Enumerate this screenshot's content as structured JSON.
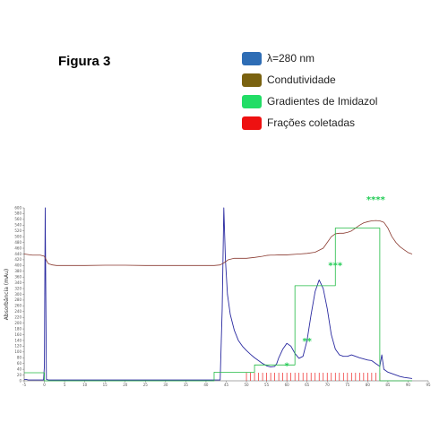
{
  "figure": {
    "title": "Figura 3"
  },
  "legend": [
    {
      "label": "λ=280 nm",
      "color": "#2e6db5"
    },
    {
      "label": "Condutividade",
      "color": "#7a6210"
    },
    {
      "label": "Gradientes de Imidazol",
      "color": "#22dd66"
    },
    {
      "label": "Frações coletadas",
      "color": "#ee1111"
    }
  ],
  "chart_data": {
    "type": "line",
    "title": "",
    "xlabel": "",
    "ylabel": "Absorbância (mAu)",
    "xlim": [
      -5,
      95
    ],
    "ylim": [
      0,
      600
    ],
    "xticks": [
      -5,
      0,
      5,
      10,
      15,
      20,
      25,
      30,
      35,
      40,
      45,
      50,
      55,
      60,
      65,
      70,
      75,
      80,
      85,
      90,
      95
    ],
    "yticks": [
      0,
      20,
      40,
      60,
      80,
      100,
      120,
      140,
      160,
      180,
      200,
      220,
      240,
      260,
      280,
      300,
      320,
      340,
      360,
      380,
      400,
      420,
      440,
      460,
      480,
      500,
      520,
      540,
      560,
      580,
      600
    ],
    "grid": false,
    "annotations": [
      {
        "text": "*",
        "x": 60,
        "y": 42,
        "color": "#22cc55"
      },
      {
        "text": "**",
        "x": 65,
        "y": 127,
        "color": "#22cc55"
      },
      {
        "text": "***",
        "x": 72,
        "y": 390,
        "color": "#22cc55"
      },
      {
        "text": "****",
        "x": 82,
        "y": 618,
        "color": "#22cc55"
      }
    ],
    "series": [
      {
        "name": "λ=280 nm",
        "color": "#2a2aa0",
        "x": [
          -5,
          -4.5,
          -4,
          -0.2,
          0,
          0.2,
          0.5,
          1,
          43.5,
          44,
          44.4,
          44.8,
          45.3,
          46,
          47,
          48,
          49,
          50,
          51,
          52,
          53,
          54,
          55,
          56,
          57,
          57.5,
          58,
          59,
          60,
          61,
          62,
          63,
          64,
          65,
          66,
          67,
          68,
          69,
          70,
          71,
          72,
          73,
          74,
          75,
          76,
          77,
          78,
          79,
          80,
          81,
          82,
          83,
          83.5,
          84,
          85,
          86,
          87,
          88,
          89,
          90,
          91
        ],
        "y": [
          5,
          5,
          3,
          3,
          50,
          600,
          5,
          3,
          3,
          250,
          600,
          420,
          300,
          230,
          175,
          140,
          120,
          105,
          92,
          80,
          70,
          60,
          52,
          48,
          50,
          60,
          80,
          110,
          130,
          120,
          95,
          78,
          85,
          140,
          230,
          310,
          350,
          320,
          250,
          160,
          110,
          90,
          85,
          85,
          90,
          85,
          80,
          76,
          72,
          70,
          60,
          50,
          90,
          40,
          30,
          25,
          20,
          15,
          12,
          10,
          8
        ]
      },
      {
        "name": "Condutividade",
        "color": "#8a3a30",
        "x": [
          -5,
          -3,
          -1,
          0,
          0.5,
          1,
          2,
          3,
          5,
          10,
          15,
          20,
          25,
          30,
          35,
          40,
          42,
          43.5,
          44.5,
          45.5,
          47,
          50,
          52,
          54,
          55,
          56,
          57,
          58,
          60,
          63,
          65,
          67,
          69,
          70,
          71,
          72,
          73,
          74,
          75,
          76,
          77,
          78,
          79,
          80,
          81,
          82,
          83,
          84,
          85,
          86,
          87,
          88,
          89,
          90,
          91
        ],
        "y": [
          440,
          436,
          436,
          432,
          418,
          406,
          402,
          400,
          400,
          400,
          401,
          401,
          400,
          400,
          400,
          400,
          400,
          402,
          410,
          420,
          425,
          425,
          428,
          432,
          435,
          436,
          436,
          437,
          437,
          440,
          442,
          446,
          460,
          480,
          500,
          510,
          512,
          512,
          515,
          520,
          530,
          540,
          548,
          552,
          555,
          556,
          555,
          550,
          530,
          500,
          480,
          465,
          455,
          445,
          440
        ]
      },
      {
        "name": "Gradientes de Imidazol",
        "color": "#22bb44",
        "x": [
          -5,
          0,
          0,
          42,
          42,
          52,
          52,
          62,
          62,
          72,
          72,
          83,
          83,
          88,
          88,
          91
        ],
        "y": [
          28,
          28,
          0,
          0,
          30,
          30,
          55,
          55,
          330,
          330,
          530,
          530,
          0,
          0,
          0,
          0
        ]
      }
    ],
    "fractions": {
      "name": "Frações coletadas",
      "color": "#ee2222",
      "positions": [
        50,
        51,
        52,
        53,
        54,
        55,
        56,
        57,
        58,
        59,
        60,
        61,
        62,
        63,
        64,
        65,
        66,
        67,
        68,
        69,
        70,
        71,
        72,
        73,
        74,
        75,
        76,
        77,
        78,
        79,
        80,
        81,
        82,
        83
      ]
    }
  }
}
